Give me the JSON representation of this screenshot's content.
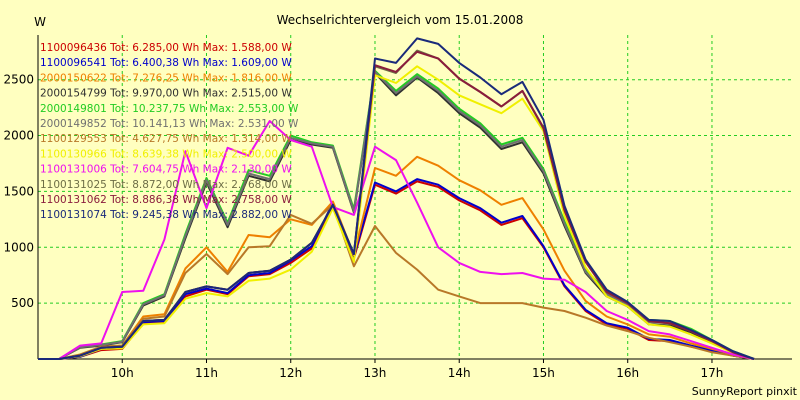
{
  "chart_data": {
    "type": "line",
    "title": "Wechselrichtervergleich vom 15.01.2008",
    "ylabel": "W",
    "xlabel": "",
    "footer": "SunnyReport pinxit",
    "ylim": [
      0,
      2900
    ],
    "xlim": [
      9.0,
      17.95
    ],
    "yticks": [
      500,
      1000,
      1500,
      2000,
      2500
    ],
    "xticks": [
      {
        "value": 10,
        "label": "10h"
      },
      {
        "value": 11,
        "label": "11h"
      },
      {
        "value": 12,
        "label": "12h"
      },
      {
        "value": 13,
        "label": "13h"
      },
      {
        "value": 14,
        "label": "14h"
      },
      {
        "value": 15,
        "label": "15h"
      },
      {
        "value": 16,
        "label": "16h"
      },
      {
        "value": 17,
        "label": "17h"
      }
    ],
    "grid": true,
    "legend_position": "top-left",
    "x": [
      9.0,
      9.25,
      9.5,
      9.75,
      10.0,
      10.25,
      10.5,
      10.75,
      11.0,
      11.25,
      11.5,
      11.75,
      12.0,
      12.25,
      12.5,
      12.75,
      13.0,
      13.25,
      13.5,
      13.75,
      14.0,
      14.25,
      14.5,
      14.75,
      15.0,
      15.25,
      15.5,
      15.75,
      16.0,
      16.25,
      16.5,
      16.75,
      17.0,
      17.25,
      17.5
    ],
    "series": [
      {
        "name": "1100096436 Tot: 6.285,00 Wh Max: 1.588,00 W",
        "color": "#cc0000",
        "values": [
          0,
          0,
          20,
          80,
          90,
          320,
          330,
          560,
          620,
          580,
          740,
          760,
          860,
          990,
          1390,
          900,
          1560,
          1480,
          1590,
          1540,
          1420,
          1330,
          1200,
          1260,
          1000,
          650,
          430,
          310,
          270,
          170,
          160,
          110,
          70,
          30,
          0
        ]
      },
      {
        "name": "1100096541 Tot: 6.400,38 Wh Max: 1.609,00 W",
        "color": "#0000cc",
        "values": [
          0,
          0,
          20,
          90,
          100,
          330,
          340,
          580,
          630,
          590,
          750,
          770,
          880,
          1010,
          1400,
          920,
          1580,
          1500,
          1610,
          1560,
          1440,
          1350,
          1220,
          1280,
          1010,
          660,
          440,
          320,
          280,
          180,
          170,
          120,
          80,
          30,
          0
        ]
      },
      {
        "name": "2000150622 Tot: 7.276,25 Wh Max: 1.816,00 W",
        "color": "#ee8000",
        "values": [
          0,
          0,
          30,
          110,
          120,
          380,
          400,
          810,
          1000,
          780,
          1110,
          1090,
          1250,
          1200,
          1410,
          930,
          1710,
          1640,
          1810,
          1730,
          1600,
          1510,
          1380,
          1440,
          1160,
          790,
          520,
          380,
          310,
          220,
          200,
          140,
          90,
          40,
          0
        ]
      },
      {
        "name": "2000154799 Tot: 9.970,00 Wh Max: 2.515,00 W",
        "color": "#303030",
        "values": [
          0,
          0,
          100,
          120,
          150,
          480,
          560,
          1080,
          1580,
          1180,
          1640,
          1590,
          1960,
          1920,
          1890,
          1310,
          2560,
          2360,
          2520,
          2380,
          2200,
          2070,
          1880,
          1940,
          1660,
          1190,
          770,
          560,
          470,
          310,
          300,
          240,
          150,
          60,
          0
        ]
      },
      {
        "name": "2000149801 Tot: 10.237,75 Wh Max: 2.553,00 W",
        "color": "#22cc22",
        "values": [
          0,
          0,
          110,
          130,
          160,
          500,
          580,
          1120,
          1620,
          1220,
          1690,
          1640,
          2000,
          1940,
          1910,
          1340,
          2580,
          2400,
          2550,
          2420,
          2240,
          2110,
          1920,
          1980,
          1700,
          1230,
          800,
          600,
          500,
          350,
          340,
          270,
          170,
          70,
          0
        ]
      },
      {
        "name": "2000149852 Tot: 10.141,13 Wh Max: 2.531,00 W",
        "color": "#707070",
        "values": [
          0,
          0,
          105,
          125,
          155,
          490,
          570,
          1100,
          1600,
          1200,
          1660,
          1610,
          1980,
          1930,
          1900,
          1320,
          2570,
          2380,
          2530,
          2400,
          2220,
          2090,
          1900,
          1960,
          1680,
          1210,
          780,
          580,
          490,
          330,
          320,
          250,
          160,
          65,
          0
        ]
      },
      {
        "name": "1100129553 Tot: 4.627,75 Wh Max: 1.314,00 W",
        "color": "#b87828",
        "values": [
          0,
          0,
          40,
          110,
          120,
          360,
          380,
          770,
          940,
          760,
          1000,
          1010,
          1290,
          1210,
          1380,
          830,
          1190,
          950,
          800,
          620,
          560,
          500,
          500,
          500,
          460,
          430,
          370,
          300,
          250,
          190,
          150,
          110,
          60,
          30,
          0
        ]
      },
      {
        "name": "1100130966 Tot: 8.639,38 Wh Max: 2.500,00 W",
        "color": "#f0f000",
        "values": [
          0,
          0,
          25,
          90,
          95,
          310,
          320,
          540,
          590,
          560,
          700,
          720,
          800,
          960,
          1350,
          870,
          2540,
          2470,
          2620,
          2500,
          2360,
          2280,
          2200,
          2330,
          2040,
          1280,
          820,
          560,
          470,
          310,
          290,
          220,
          140,
          55,
          0
        ]
      },
      {
        "name": "1100131006 Tot: 7.604,75 Wh Max: 2.130,00 W",
        "color": "#ee10ee",
        "values": [
          0,
          0,
          120,
          140,
          600,
          610,
          1070,
          1860,
          1350,
          1890,
          1820,
          2130,
          1960,
          1900,
          1360,
          1290,
          1900,
          1780,
          1400,
          1000,
          860,
          780,
          760,
          770,
          720,
          710,
          600,
          430,
          350,
          250,
          220,
          160,
          100,
          40,
          0
        ]
      },
      {
        "name": "1100131025 Tot: 8.872,00 Wh Max: 2.768,00 W",
        "color": "#6e6e46",
        "values": [
          0,
          0,
          30,
          100,
          110,
          340,
          350,
          600,
          650,
          620,
          770,
          790,
          890,
          1040,
          1380,
          940,
          2620,
          2560,
          2760,
          2690,
          2510,
          2390,
          2260,
          2400,
          2060,
          1330,
          870,
          600,
          500,
          340,
          320,
          250,
          160,
          60,
          0
        ]
      },
      {
        "name": "1100131062 Tot: 8.886,38 Wh Max: 2.758,00 W",
        "color": "#8a1c3c",
        "values": [
          0,
          0,
          30,
          100,
          110,
          340,
          350,
          600,
          650,
          620,
          770,
          790,
          890,
          1040,
          1380,
          940,
          2630,
          2570,
          2750,
          2690,
          2510,
          2390,
          2260,
          2400,
          2070,
          1330,
          870,
          600,
          500,
          340,
          320,
          250,
          160,
          60,
          0
        ]
      },
      {
        "name": "1100131074 Tot: 9.245,38 Wh Max: 2.882,00 W",
        "color": "#1a2a7a",
        "values": [
          0,
          0,
          30,
          100,
          110,
          340,
          350,
          600,
          650,
          620,
          770,
          790,
          890,
          1040,
          1380,
          940,
          2690,
          2650,
          2870,
          2820,
          2650,
          2520,
          2370,
          2480,
          2140,
          1370,
          890,
          620,
          510,
          350,
          340,
          260,
          170,
          70,
          0
        ]
      }
    ]
  }
}
